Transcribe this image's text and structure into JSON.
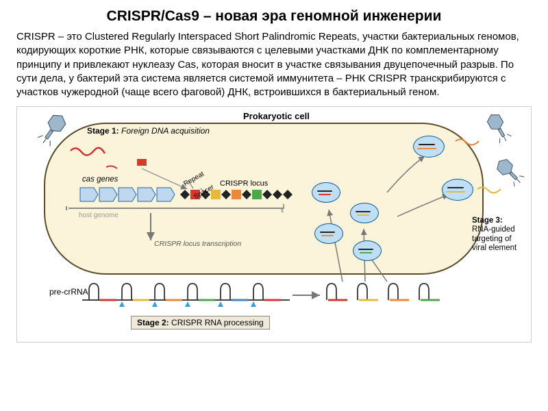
{
  "title": "CRISPR/Cas9 – новая эра геномной инженерии",
  "description": "CRISPR – это Clustered Regularly Interspaced Short Palindromic Repeats, участки бактериальных геномов, кодирующих короткие РНК, которые связываются с целевыми участками ДНК по комплементарному принципу и привлекают нуклеазу Cas, которая вносит в участке связывания двуцепочечный разрыв. По сути дела, у бактерий эта система является системой иммунитета – РНК CRISPR транскрибируются с участков чужеродной (чаще всего фаговой) ДНК, встроившихся в бактериальный геном.",
  "diagram": {
    "cell_label": "Prokaryotic cell",
    "stage1_bold": "Stage 1:",
    "stage1_text": " Foreign DNA acquisition",
    "stage2_bold": "Stage 2:",
    "stage2_text": " CRISPR RNA processing",
    "stage3_bold": "Stage 3:",
    "stage3_text": " RNA-guided targeting of viral element",
    "cas_label": "cas genes",
    "locus_label": "CRISPR locus",
    "repeat_label": "Repeat",
    "spacer_label": "Spacer",
    "host_label": "host genome",
    "transcription_label": "CRISPR locus transcription",
    "pre_crrna": "pre-crRNA",
    "colors": {
      "cell_fill": "#fcf3db",
      "cell_stroke": "#5a4a2a",
      "cas_arrow": "#bfd7ef",
      "cas_stroke": "#1a6aa8",
      "cas_complex_fill": "#c0dff4",
      "repeat_diamond": "#222222",
      "phage_body": "#9db7cc",
      "spacers": [
        "#d43a2e",
        "#e8b83a",
        "#e88a3a",
        "#4aa848",
        "#3a87c7"
      ],
      "rna_colors": [
        "#d43a2e",
        "#e8b83a",
        "#e88a3a",
        "#4aa848",
        "#3a87c7"
      ]
    },
    "cas_genes_count": 5,
    "crispr_spacers": [
      "#d43a2e",
      "#e8b83a",
      "#e88a3a",
      "#4aa848"
    ],
    "pre_crrna_units": 6,
    "cleavage_marker": "#3a9ed8"
  }
}
